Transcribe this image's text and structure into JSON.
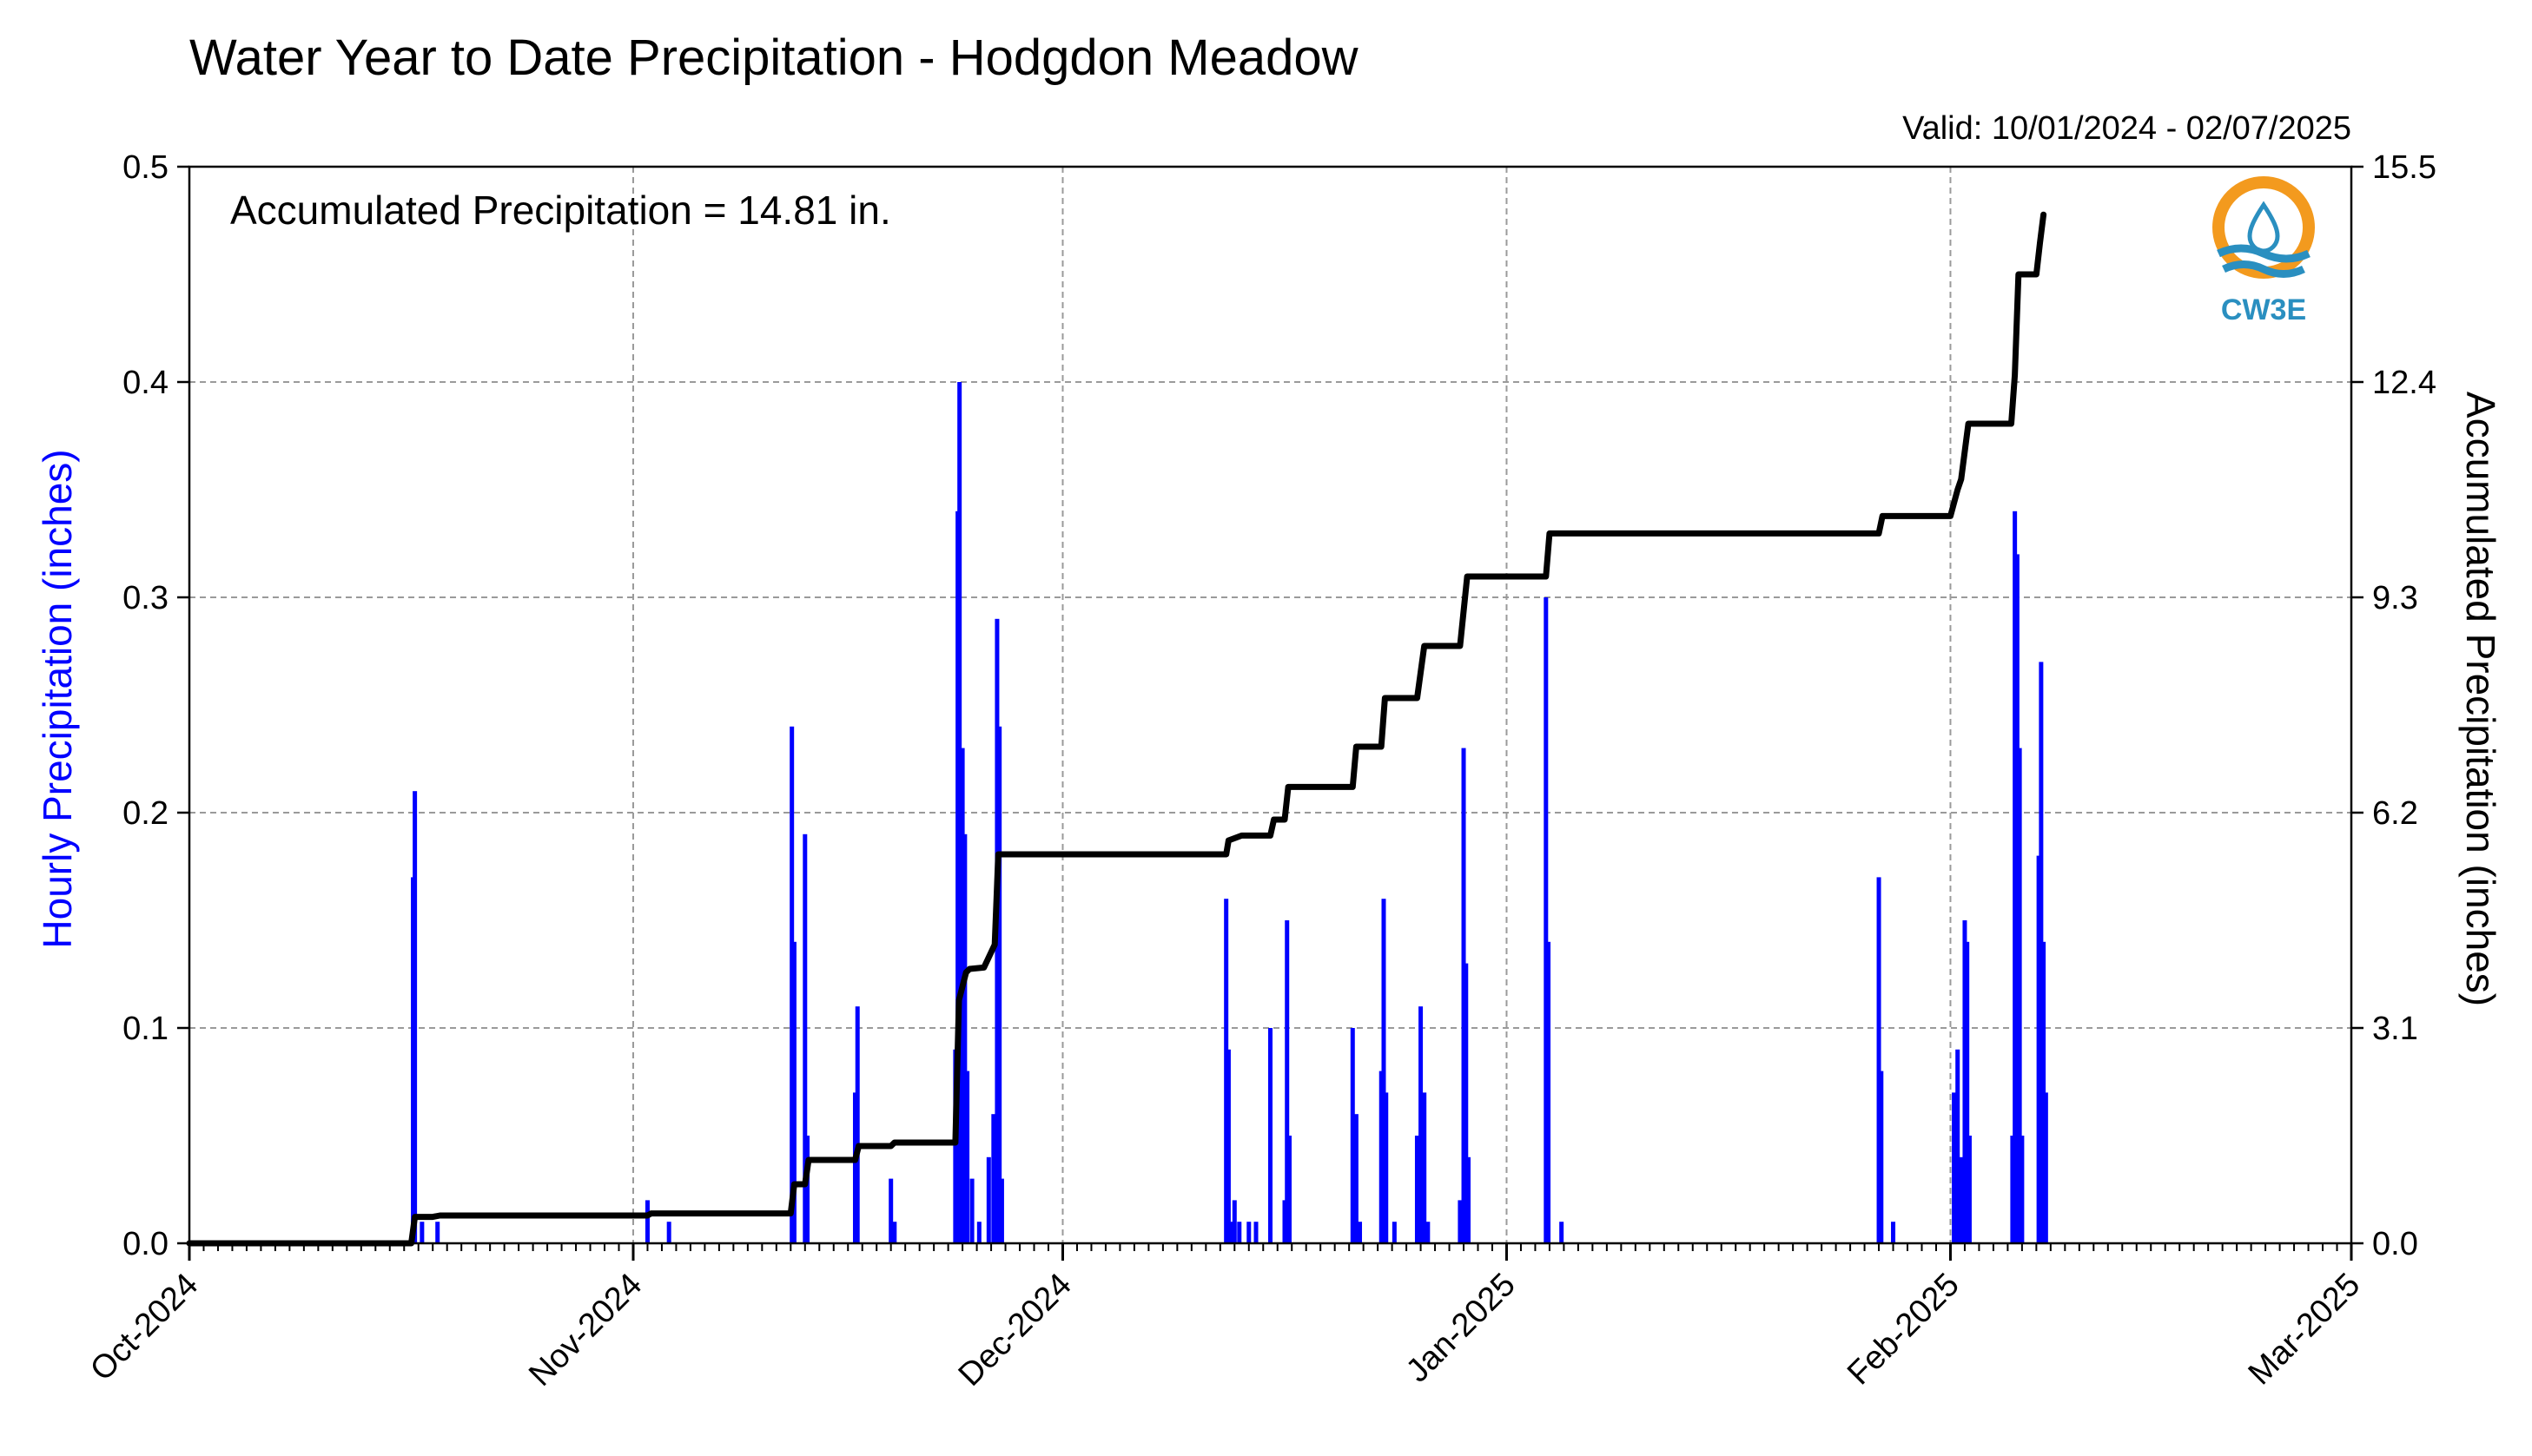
{
  "colors": {
    "hourly": "#0000ff",
    "accumulated": "#000000",
    "grid": "#9a9a9a",
    "logo_orange": "#f39a1e",
    "logo_blue": "#2a8fc0"
  },
  "logo": {
    "text": "CW3E"
  },
  "chart_data": {
    "type": "bar",
    "title": "Water Year to Date Precipitation - Hodgdon Meadow",
    "subtitle": "Valid: 10/01/2024 - 02/07/2025",
    "annotation": "Accumulated Precipitation = 14.81 in.",
    "ylabel_left": "Hourly Precipitation (inches)",
    "ylabel_right": "Accumulated Precipitation (inches)",
    "x_range": [
      "2024-10-01",
      "2025-03-01"
    ],
    "ylim_left": [
      0,
      0.5
    ],
    "ylim_right": [
      0,
      15.5
    ],
    "yticks_left": [
      "0.0",
      "0.1",
      "0.2",
      "0.3",
      "0.4",
      "0.5"
    ],
    "yticks_right": [
      "0.0",
      "3.1",
      "6.2",
      "9.3",
      "12.4",
      "15.5"
    ],
    "xticks": [
      {
        "date": "2024-10-01",
        "label": "Oct-2024"
      },
      {
        "date": "2024-11-01",
        "label": "Nov-2024"
      },
      {
        "date": "2024-12-01",
        "label": "Dec-2024"
      },
      {
        "date": "2025-01-01",
        "label": "Jan-2025"
      },
      {
        "date": "2025-02-01",
        "label": "Feb-2025"
      },
      {
        "date": "2025-03-01",
        "label": "Mar-2025"
      }
    ],
    "grid": true,
    "series": [
      {
        "name": "Hourly Precipitation",
        "type": "bar",
        "axis": "left",
        "points": [
          [
            "2024-10-16T15:00",
            0.17
          ],
          [
            "2024-10-16T18:00",
            0.21
          ],
          [
            "2024-10-17T06:00",
            0.01
          ],
          [
            "2024-10-18T08:00",
            0.01
          ],
          [
            "2024-11-02T00:00",
            0.02
          ],
          [
            "2024-11-03T12:00",
            0.01
          ],
          [
            "2024-11-12T02:00",
            0.24
          ],
          [
            "2024-11-12T06:00",
            0.14
          ],
          [
            "2024-11-13T00:00",
            0.19
          ],
          [
            "2024-11-13T04:00",
            0.05
          ],
          [
            "2024-11-16T12:00",
            0.07
          ],
          [
            "2024-11-16T16:00",
            0.11
          ],
          [
            "2024-11-19T00:00",
            0.03
          ],
          [
            "2024-11-19T06:00",
            0.01
          ],
          [
            "2024-11-23T12:00",
            0.09
          ],
          [
            "2024-11-23T16:00",
            0.34
          ],
          [
            "2024-11-23T19:00",
            0.4
          ],
          [
            "2024-11-24T00:00",
            0.23
          ],
          [
            "2024-11-24T04:00",
            0.19
          ],
          [
            "2024-11-24T08:00",
            0.08
          ],
          [
            "2024-11-24T16:00",
            0.03
          ],
          [
            "2024-11-25T04:00",
            0.01
          ],
          [
            "2024-11-25T20:00",
            0.04
          ],
          [
            "2024-11-26T04:00",
            0.06
          ],
          [
            "2024-11-26T10:00",
            0.29
          ],
          [
            "2024-11-26T14:00",
            0.24
          ],
          [
            "2024-11-26T18:00",
            0.03
          ],
          [
            "2024-12-12T10:00",
            0.16
          ],
          [
            "2024-12-12T14:00",
            0.09
          ],
          [
            "2024-12-12T18:00",
            0.01
          ],
          [
            "2024-12-13T00:00",
            0.02
          ],
          [
            "2024-12-13T08:00",
            0.01
          ],
          [
            "2024-12-14T00:00",
            0.01
          ],
          [
            "2024-12-14T12:00",
            0.01
          ],
          [
            "2024-12-15T12:00",
            0.1
          ],
          [
            "2024-12-16T12:00",
            0.02
          ],
          [
            "2024-12-16T16:00",
            0.15
          ],
          [
            "2024-12-16T20:00",
            0.05
          ],
          [
            "2024-12-21T06:00",
            0.1
          ],
          [
            "2024-12-21T12:00",
            0.06
          ],
          [
            "2024-12-21T18:00",
            0.01
          ],
          [
            "2024-12-23T06:00",
            0.08
          ],
          [
            "2024-12-23T10:00",
            0.16
          ],
          [
            "2024-12-23T14:00",
            0.07
          ],
          [
            "2024-12-24T04:00",
            0.01
          ],
          [
            "2024-12-25T18:00",
            0.05
          ],
          [
            "2024-12-26T00:00",
            0.11
          ],
          [
            "2024-12-26T06:00",
            0.07
          ],
          [
            "2024-12-26T12:00",
            0.01
          ],
          [
            "2024-12-28T18:00",
            0.02
          ],
          [
            "2024-12-29T00:00",
            0.23
          ],
          [
            "2024-12-29T04:00",
            0.13
          ],
          [
            "2024-12-29T08:00",
            0.04
          ],
          [
            "2025-01-03T18:00",
            0.3
          ],
          [
            "2025-01-03T22:00",
            0.14
          ],
          [
            "2025-01-04T20:00",
            0.01
          ],
          [
            "2025-01-27T00:00",
            0.17
          ],
          [
            "2025-01-27T04:00",
            0.08
          ],
          [
            "2025-01-28T00:00",
            0.01
          ],
          [
            "2025-02-01T06:00",
            0.07
          ],
          [
            "2025-02-01T12:00",
            0.09
          ],
          [
            "2025-02-01T18:00",
            0.04
          ],
          [
            "2025-02-02T00:00",
            0.15
          ],
          [
            "2025-02-02T04:00",
            0.14
          ],
          [
            "2025-02-02T08:00",
            0.05
          ],
          [
            "2025-02-05T08:00",
            0.05
          ],
          [
            "2025-02-05T12:00",
            0.34
          ],
          [
            "2025-02-05T16:00",
            0.32
          ],
          [
            "2025-02-05T20:00",
            0.23
          ],
          [
            "2025-02-06T00:00",
            0.05
          ],
          [
            "2025-02-07T04:00",
            0.18
          ],
          [
            "2025-02-07T08:00",
            0.27
          ],
          [
            "2025-02-07T12:00",
            0.14
          ],
          [
            "2025-02-07T16:00",
            0.07
          ]
        ]
      },
      {
        "name": "Accumulated Precipitation",
        "type": "line",
        "axis": "right",
        "points": [
          [
            "2024-10-01T00:00",
            0.0
          ],
          [
            "2024-10-16T12:00",
            0.0
          ],
          [
            "2024-10-16T18:00",
            0.38
          ],
          [
            "2024-10-18T00:00",
            0.38
          ],
          [
            "2024-10-18T12:00",
            0.4
          ],
          [
            "2024-11-02T00:00",
            0.4
          ],
          [
            "2024-11-02T06:00",
            0.43
          ],
          [
            "2024-11-12T00:00",
            0.43
          ],
          [
            "2024-11-12T06:00",
            0.85
          ],
          [
            "2024-11-13T00:00",
            0.85
          ],
          [
            "2024-11-13T06:00",
            1.2
          ],
          [
            "2024-11-16T12:00",
            1.2
          ],
          [
            "2024-11-16T18:00",
            1.4
          ],
          [
            "2024-11-19T00:00",
            1.4
          ],
          [
            "2024-11-19T06:00",
            1.45
          ],
          [
            "2024-11-23T12:00",
            1.45
          ],
          [
            "2024-11-23T18:00",
            3.5
          ],
          [
            "2024-11-24T06:00",
            3.9
          ],
          [
            "2024-11-24T12:00",
            3.95
          ],
          [
            "2024-11-25T12:00",
            3.97
          ],
          [
            "2024-11-26T06:00",
            4.3
          ],
          [
            "2024-11-26T12:00",
            5.6
          ],
          [
            "2024-12-12T10:00",
            5.6
          ],
          [
            "2024-12-12T14:00",
            5.8
          ],
          [
            "2024-12-13T12:00",
            5.87
          ],
          [
            "2024-12-15T12:00",
            5.87
          ],
          [
            "2024-12-15T18:00",
            6.1
          ],
          [
            "2024-12-16T12:00",
            6.1
          ],
          [
            "2024-12-16T18:00",
            6.57
          ],
          [
            "2024-12-21T06:00",
            6.57
          ],
          [
            "2024-12-21T12:00",
            7.15
          ],
          [
            "2024-12-23T06:00",
            7.15
          ],
          [
            "2024-12-23T12:00",
            7.85
          ],
          [
            "2024-12-25T18:00",
            7.85
          ],
          [
            "2024-12-26T06:00",
            8.6
          ],
          [
            "2024-12-28T18:00",
            8.6
          ],
          [
            "2024-12-29T06:00",
            9.6
          ],
          [
            "2025-01-03T18:00",
            9.6
          ],
          [
            "2025-01-04T00:00",
            10.22
          ],
          [
            "2025-01-27T00:00",
            10.22
          ],
          [
            "2025-01-27T06:00",
            10.47
          ],
          [
            "2025-02-01T00:00",
            10.47
          ],
          [
            "2025-02-01T12:00",
            10.85
          ],
          [
            "2025-02-01T18:00",
            11.0
          ],
          [
            "2025-02-02T06:00",
            11.8
          ],
          [
            "2025-02-05T06:00",
            11.8
          ],
          [
            "2025-02-05T12:00",
            12.5
          ],
          [
            "2025-02-05T18:00",
            13.95
          ],
          [
            "2025-02-07T00:00",
            13.95
          ],
          [
            "2025-02-07T06:00",
            14.4
          ],
          [
            "2025-02-07T12:00",
            14.81
          ]
        ]
      }
    ]
  }
}
